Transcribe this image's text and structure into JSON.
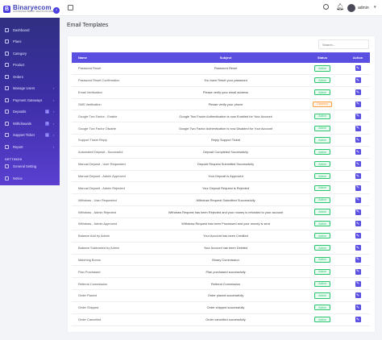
{
  "brand": {
    "name": "Binaryecom",
    "tagline": "AUTOMATED BINARY MLM PLATFORM",
    "logo_letter": "B"
  },
  "sidebar": {
    "items": [
      {
        "label": "Dashboard",
        "icon": "home-icon"
      },
      {
        "label": "Plans",
        "icon": "plan-icon"
      },
      {
        "label": "Category",
        "icon": "category-icon"
      },
      {
        "label": "Product",
        "icon": "box-icon"
      },
      {
        "label": "Orders",
        "icon": "cart-icon"
      },
      {
        "label": "Manage Users",
        "icon": "users-icon",
        "caret": true
      },
      {
        "label": "Payment Gateways",
        "icon": "credit-card-icon",
        "caret": true
      },
      {
        "label": "Deposits",
        "icon": "deposit-icon",
        "badge": "1",
        "caret": true
      },
      {
        "label": "Withdrawals",
        "icon": "withdraw-icon",
        "badge": "1",
        "caret": true
      },
      {
        "label": "Support Ticket",
        "icon": "ticket-icon",
        "badge": "1",
        "caret": true
      },
      {
        "label": "Report",
        "icon": "report-icon",
        "caret": true
      }
    ],
    "settings_section": "SETTINGS",
    "settings_items": [
      {
        "label": "General Setting",
        "icon": "gear-icon"
      },
      {
        "label": "Notice",
        "icon": "notice-icon"
      }
    ]
  },
  "topbar": {
    "admin_name": "admin"
  },
  "page": {
    "title": "Email Templates"
  },
  "search": {
    "placeholder": "Search..."
  },
  "table": {
    "headers": {
      "name": "Name",
      "subject": "Subject",
      "status": "Status",
      "action": "Action"
    },
    "rows": [
      {
        "name": "Password Reset",
        "subject": "Password Reset",
        "status": "Active"
      },
      {
        "name": "Password Reset Confirmation",
        "subject": "You have Reset your password",
        "status": "Active"
      },
      {
        "name": "Email Verification",
        "subject": "Please verify your email address",
        "status": "Active"
      },
      {
        "name": "SMS Verification",
        "subject": "Please verify your phone",
        "status": "Disabled"
      },
      {
        "name": "Google Two Factor - Enable",
        "subject": "Google Two Factor Authentication is now Enabled for Your Account",
        "status": "Active"
      },
      {
        "name": "Google Two Factor Disable",
        "subject": "Google Two Factor Authentication is now Disabled for Your Account",
        "status": "Active"
      },
      {
        "name": "Support Ticket Reply",
        "subject": "Reply Support Ticket",
        "status": "Active"
      },
      {
        "name": "Automated Deposit - Successful",
        "subject": "Deposit Completed Successfully",
        "status": "Active"
      },
      {
        "name": "Manual Deposit - User Requested",
        "subject": "Deposit Request Submitted Successfully",
        "status": "Active"
      },
      {
        "name": "Manual Deposit - Admin Approved",
        "subject": "Your Deposit is Approved",
        "status": "Active"
      },
      {
        "name": "Manual Deposit - Admin Rejected",
        "subject": "Your Deposit Request is Rejected",
        "status": "Active"
      },
      {
        "name": "Withdraw - User Requested",
        "subject": "Withdraw Request Submitted Successfully",
        "status": "Active"
      },
      {
        "name": "Withdraw - Admin Rejected",
        "subject": "Withdraw Request has been Rejected and your money is refunded to your account",
        "status": "Active"
      },
      {
        "name": "Withdraw - Admin Approved",
        "subject": "Withdraw Request has been Processed and your money is sent",
        "status": "Active"
      },
      {
        "name": "Balance Add by Admin",
        "subject": "Your Account has been Credited",
        "status": "Active"
      },
      {
        "name": "Balance Subtracted by Admin",
        "subject": "Your Account has been Debited",
        "status": "Active"
      },
      {
        "name": "Matching Bonus",
        "subject": "Binary Commission",
        "status": "Active"
      },
      {
        "name": "Plan Purchased",
        "subject": "Plan purchased successfully",
        "status": "Active"
      },
      {
        "name": "Referral Commission",
        "subject": "Referral Commission",
        "status": "Active"
      },
      {
        "name": "Order Placed",
        "subject": "Order placed successfully",
        "status": "Active"
      },
      {
        "name": "Order Shipped",
        "subject": "Order shipped successfully",
        "status": "Active"
      },
      {
        "name": "Order Cancelled",
        "subject": "Order cancelled successfully",
        "status": "Active"
      }
    ]
  },
  "colors": {
    "sidebar_top": "#2c2f7a",
    "sidebar_bottom": "#5a3fd0",
    "accent": "#5a4fe0",
    "active": "#28c76f",
    "disabled": "#ff9f43"
  }
}
